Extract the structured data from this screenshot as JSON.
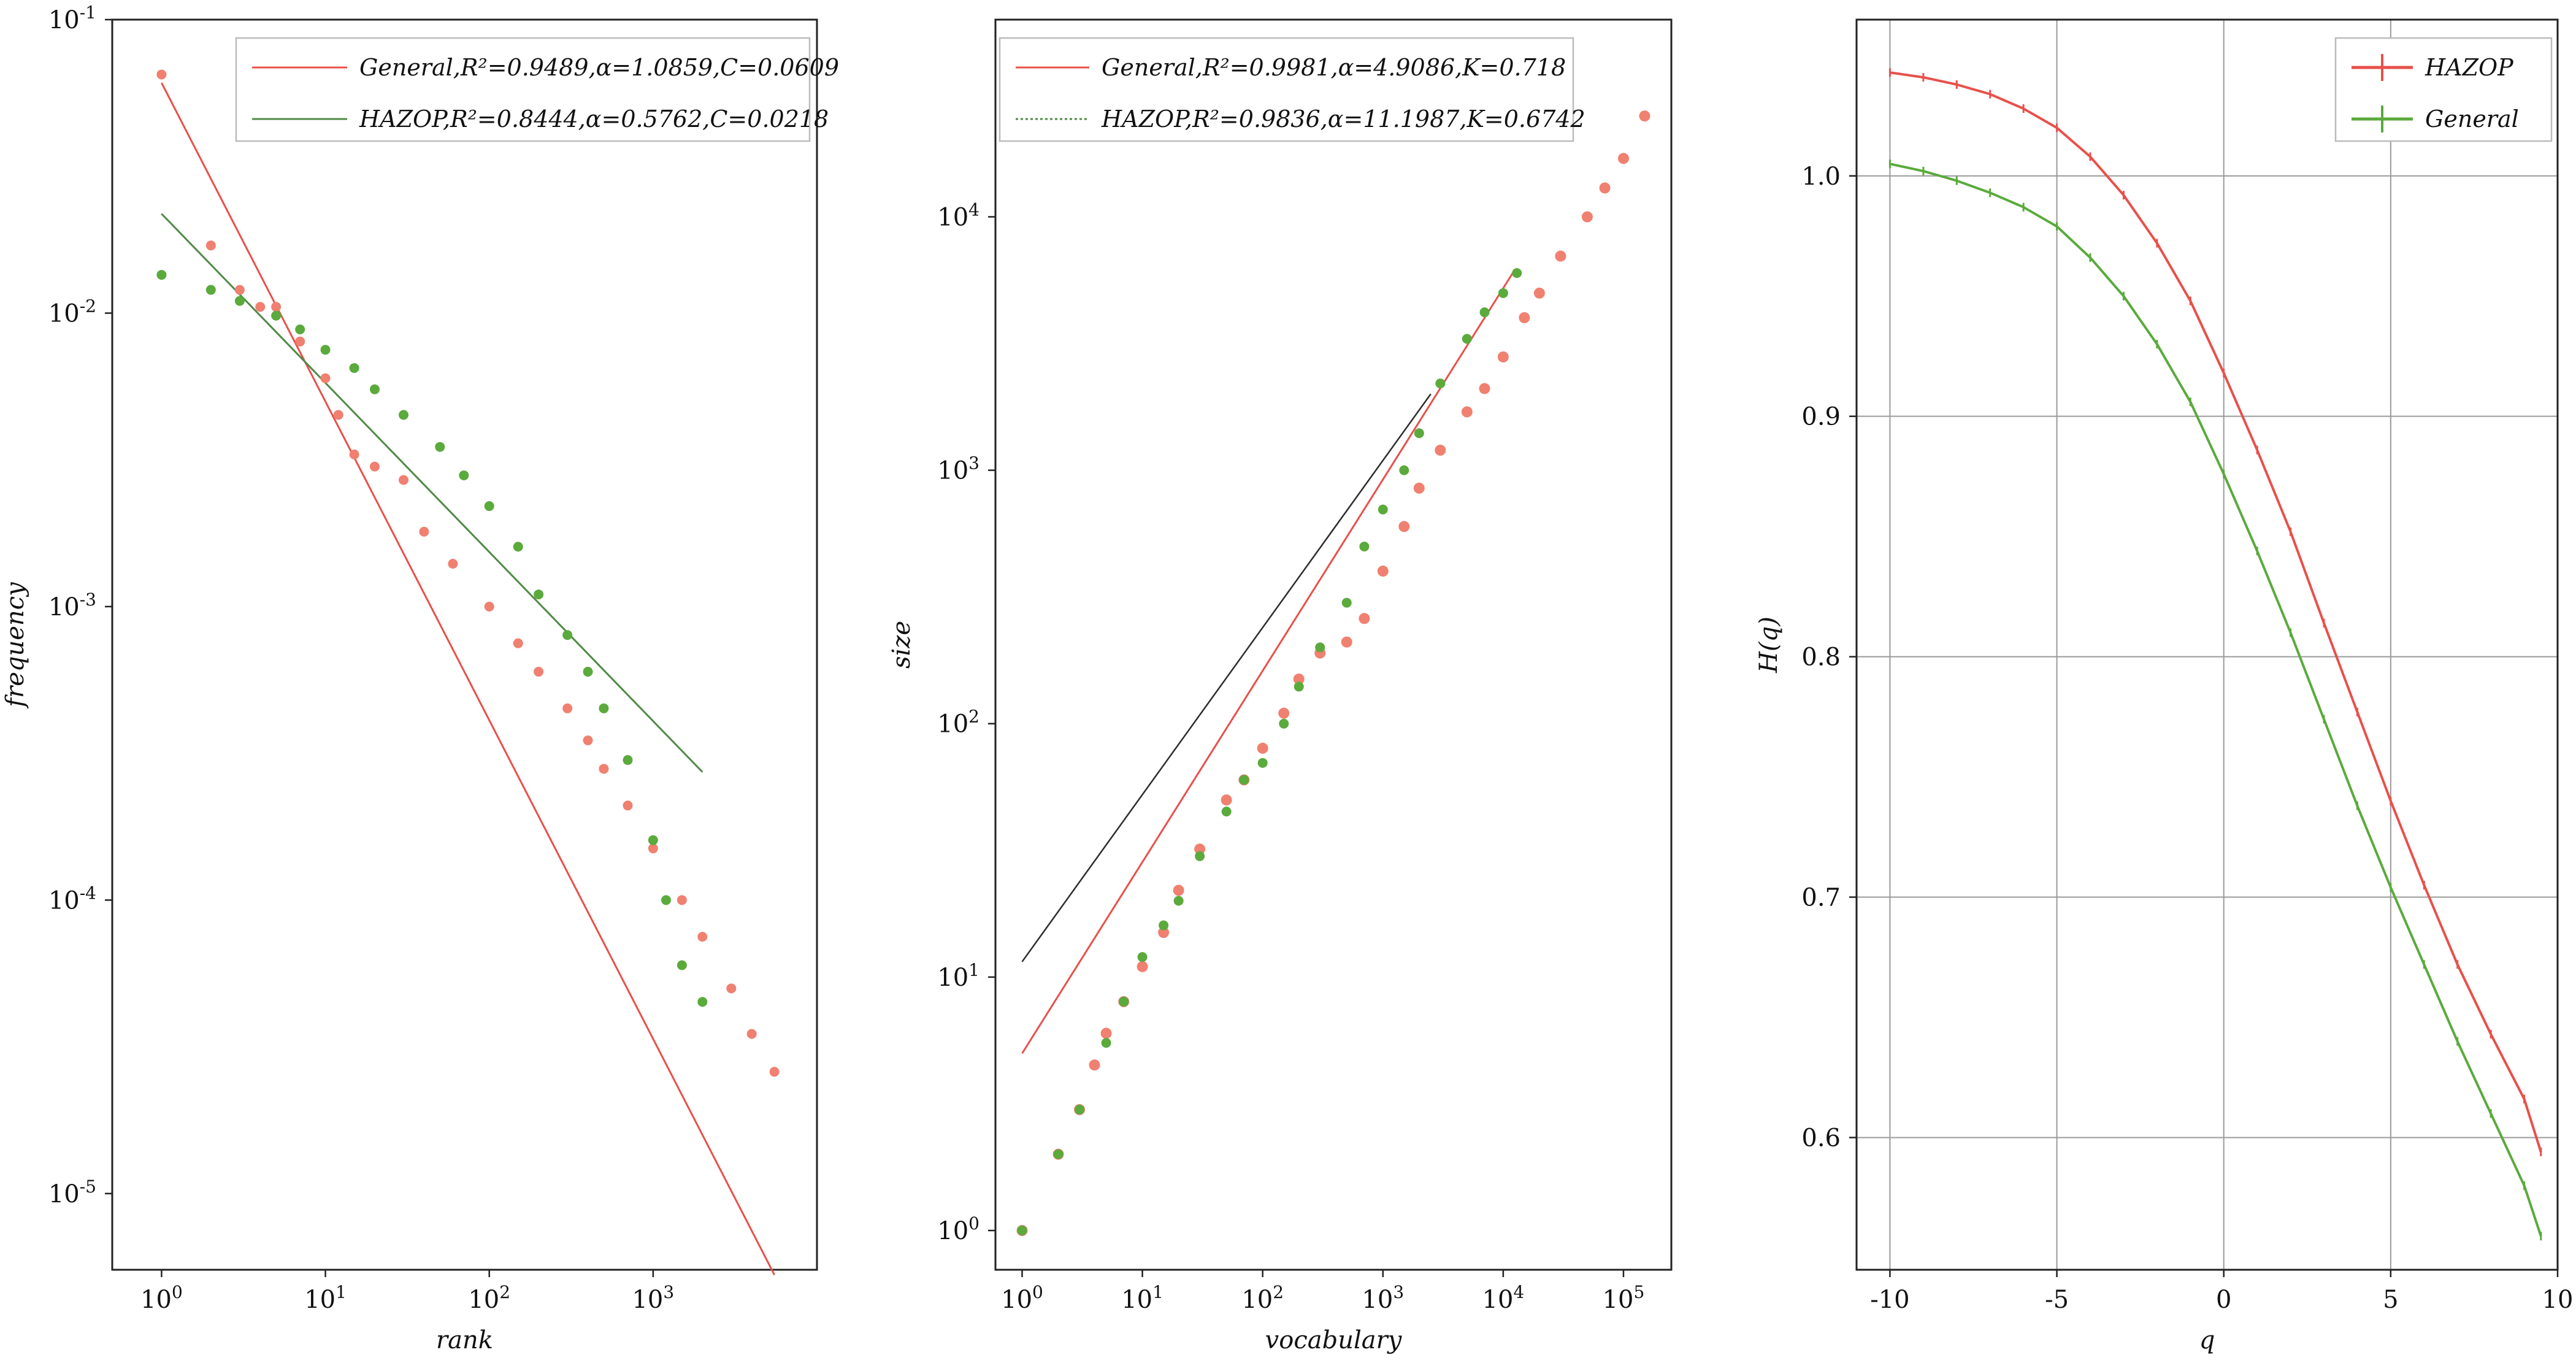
{
  "figure": {
    "panels": [
      "zipf-rank-frequency",
      "heaps-vocabulary-size",
      "renyi-entropy-hq"
    ]
  },
  "colors": {
    "general": "#e8504a",
    "general_marker": "#f08070",
    "hazop": "#5aaa3c",
    "hazop_fit": "#4f8a45",
    "hazop_fit_dark": "#2c2c2c",
    "axes": "#222222",
    "grid": "#9a9a9a"
  },
  "chart_data": [
    {
      "type": "scatter",
      "title": "",
      "xlabel": "rank",
      "ylabel": "frequency",
      "xscale": "log",
      "yscale": "log",
      "xlim": [
        0.5,
        10000
      ],
      "ylim": [
        5.5e-06,
        0.1
      ],
      "xticks": [
        {
          "v": 1,
          "label": "10",
          "exp": "0"
        },
        {
          "v": 10,
          "label": "10",
          "exp": "1"
        },
        {
          "v": 100,
          "label": "10",
          "exp": "2"
        },
        {
          "v": 1000,
          "label": "10",
          "exp": "3"
        }
      ],
      "yticks": [
        {
          "v": 1e-05,
          "label": "10",
          "exp": "-5"
        },
        {
          "v": 0.0001,
          "label": "10",
          "exp": "-4"
        },
        {
          "v": 0.001,
          "label": "10",
          "exp": "-3"
        },
        {
          "v": 0.01,
          "label": "10",
          "exp": "-2"
        },
        {
          "v": 0.1,
          "label": "10",
          "exp": "-1"
        }
      ],
      "legend_position": "top-right",
      "series": [
        {
          "name": "General",
          "legend": "General,R²=0.9489,α=1.0859,C=0.0609",
          "color": "#e8504a",
          "fit": {
            "kind": "powerlaw",
            "C": 0.0609,
            "alpha": 1.0859,
            "x_range": [
              1,
              5500
            ]
          },
          "points": [
            [
              1,
              0.065
            ],
            [
              2,
              0.017
            ],
            [
              3,
              0.012
            ],
            [
              4,
              0.0105
            ],
            [
              5,
              0.0105
            ],
            [
              7,
              0.008
            ],
            [
              10,
              0.006
            ],
            [
              12,
              0.0045
            ],
            [
              15,
              0.0033
            ],
            [
              20,
              0.003
            ],
            [
              30,
              0.0027
            ],
            [
              40,
              0.0018
            ],
            [
              60,
              0.0014
            ],
            [
              100,
              0.001
            ],
            [
              150,
              0.00075
            ],
            [
              200,
              0.0006
            ],
            [
              300,
              0.00045
            ],
            [
              400,
              0.00035
            ],
            [
              500,
              0.00028
            ],
            [
              700,
              0.00021
            ],
            [
              1000,
              0.00015
            ],
            [
              1500,
              0.0001
            ],
            [
              2000,
              7.5e-05
            ],
            [
              3000,
              5e-05
            ],
            [
              4000,
              3.5e-05
            ],
            [
              5500,
              2.6e-05
            ]
          ]
        },
        {
          "name": "HAZOP",
          "legend": "HAZOP,R²=0.8444,α=0.5762,C=0.0218",
          "color": "#5aaa3c",
          "fit": {
            "kind": "powerlaw",
            "C": 0.0218,
            "alpha": 0.5762,
            "x_range": [
              1,
              2000
            ]
          },
          "points": [
            [
              1,
              0.0135
            ],
            [
              2,
              0.012
            ],
            [
              3,
              0.011
            ],
            [
              5,
              0.0098
            ],
            [
              7,
              0.0088
            ],
            [
              10,
              0.0075
            ],
            [
              15,
              0.0065
            ],
            [
              20,
              0.0055
            ],
            [
              30,
              0.0045
            ],
            [
              50,
              0.0035
            ],
            [
              70,
              0.0028
            ],
            [
              100,
              0.0022
            ],
            [
              150,
              0.0016
            ],
            [
              200,
              0.0011
            ],
            [
              300,
              0.0008
            ],
            [
              400,
              0.0006
            ],
            [
              500,
              0.00045
            ],
            [
              700,
              0.0003
            ],
            [
              1000,
              0.00016
            ],
            [
              1200,
              0.0001
            ],
            [
              1500,
              6e-05
            ],
            [
              2000,
              4.5e-05
            ]
          ]
        }
      ]
    },
    {
      "type": "scatter",
      "title": "",
      "xlabel": "vocabulary",
      "ylabel": "size",
      "xscale": "log",
      "yscale": "log",
      "xlim": [
        0.6,
        250000
      ],
      "ylim": [
        0.7,
        60000
      ],
      "xticks": [
        {
          "v": 1,
          "label": "10",
          "exp": "0"
        },
        {
          "v": 10,
          "label": "10",
          "exp": "1"
        },
        {
          "v": 100,
          "label": "10",
          "exp": "2"
        },
        {
          "v": 1000,
          "label": "10",
          "exp": "3"
        },
        {
          "v": 10000,
          "label": "10",
          "exp": "4"
        },
        {
          "v": 100000,
          "label": "10",
          "exp": "5"
        }
      ],
      "yticks": [
        {
          "v": 1,
          "label": "10",
          "exp": "0"
        },
        {
          "v": 10,
          "label": "10",
          "exp": "1"
        },
        {
          "v": 100,
          "label": "10",
          "exp": "2"
        },
        {
          "v": 1000,
          "label": "10",
          "exp": "3"
        },
        {
          "v": 10000,
          "label": "10",
          "exp": "4"
        }
      ],
      "legend_position": "top-left",
      "series": [
        {
          "name": "General",
          "legend": "General,R²=0.9981,α=4.9086,K=0.718",
          "color": "#e8504a",
          "fit": {
            "kind": "line",
            "p1": [
              1,
              5
            ],
            "p2": [
              12000,
              6000
            ]
          },
          "points": [
            [
              1,
              1
            ],
            [
              2,
              2
            ],
            [
              3,
              3
            ],
            [
              4,
              4.5
            ],
            [
              5,
              6
            ],
            [
              7,
              8
            ],
            [
              10,
              11
            ],
            [
              15,
              15
            ],
            [
              20,
              22
            ],
            [
              30,
              32
            ],
            [
              50,
              50
            ],
            [
              70,
              60
            ],
            [
              100,
              80
            ],
            [
              150,
              110
            ],
            [
              200,
              150
            ],
            [
              300,
              190
            ],
            [
              500,
              210
            ],
            [
              700,
              260
            ],
            [
              1000,
              400
            ],
            [
              1500,
              600
            ],
            [
              2000,
              850
            ],
            [
              3000,
              1200
            ],
            [
              5000,
              1700
            ],
            [
              7000,
              2100
            ],
            [
              10000,
              2800
            ],
            [
              15000,
              4000
            ],
            [
              20000,
              5000
            ],
            [
              30000,
              7000
            ],
            [
              50000,
              10000
            ],
            [
              70000,
              13000
            ],
            [
              100000,
              17000
            ],
            [
              150000,
              25000
            ]
          ]
        },
        {
          "name": "HAZOP",
          "legend": "HAZOP,R²=0.9836,α=11.1987,K=0.6742",
          "color": "#5aaa3c",
          "fit": {
            "kind": "line",
            "p1": [
              1,
              11.5
            ],
            "p2": [
              2500,
              2000
            ]
          },
          "points": [
            [
              1,
              1
            ],
            [
              2,
              2
            ],
            [
              3,
              3
            ],
            [
              5,
              5.5
            ],
            [
              7,
              8
            ],
            [
              10,
              12
            ],
            [
              15,
              16
            ],
            [
              20,
              20
            ],
            [
              30,
              30
            ],
            [
              50,
              45
            ],
            [
              70,
              60
            ],
            [
              100,
              70
            ],
            [
              150,
              100
            ],
            [
              200,
              140
            ],
            [
              300,
              200
            ],
            [
              500,
              300
            ],
            [
              700,
              500
            ],
            [
              1000,
              700
            ],
            [
              1500,
              1000
            ],
            [
              2000,
              1400
            ],
            [
              3000,
              2200
            ],
            [
              5000,
              3300
            ],
            [
              7000,
              4200
            ],
            [
              10000,
              5000
            ],
            [
              13000,
              6000
            ]
          ]
        }
      ]
    },
    {
      "type": "line",
      "title": "",
      "xlabel": "q",
      "ylabel": "H(q)",
      "xlim": [
        -11,
        10
      ],
      "ylim": [
        0.545,
        1.065
      ],
      "grid": true,
      "xticks": [
        {
          "v": -10,
          "label": "-10"
        },
        {
          "v": -5,
          "label": "-5"
        },
        {
          "v": 0,
          "label": "0"
        },
        {
          "v": 5,
          "label": "5"
        },
        {
          "v": 10,
          "label": "10"
        }
      ],
      "yticks": [
        {
          "v": 0.6,
          "label": "0.6"
        },
        {
          "v": 0.7,
          "label": "0.7"
        },
        {
          "v": 0.8,
          "label": "0.8"
        },
        {
          "v": 0.9,
          "label": "0.9"
        },
        {
          "v": 1.0,
          "label": "1.0"
        }
      ],
      "legend_position": "top-right",
      "series": [
        {
          "name": "HAZOP",
          "legend": "HAZOP",
          "color": "#e8504a",
          "x": [
            -10,
            -9,
            -8,
            -7,
            -6,
            -5,
            -4,
            -3,
            -2,
            -1,
            0,
            1,
            2,
            3,
            4,
            5,
            6,
            7,
            8,
            9,
            9.5
          ],
          "values": [
            1.043,
            1.041,
            1.038,
            1.034,
            1.028,
            1.02,
            1.008,
            0.992,
            0.972,
            0.948,
            0.918,
            0.886,
            0.852,
            0.814,
            0.777,
            0.74,
            0.705,
            0.672,
            0.643,
            0.616,
            0.594
          ]
        },
        {
          "name": "General",
          "legend": "General",
          "color": "#5aaa3c",
          "x": [
            -10,
            -9,
            -8,
            -7,
            -6,
            -5,
            -4,
            -3,
            -2,
            -1,
            0,
            1,
            2,
            3,
            4,
            5,
            6,
            7,
            8,
            9,
            9.5
          ],
          "values": [
            1.005,
            1.002,
            0.998,
            0.993,
            0.987,
            0.979,
            0.966,
            0.95,
            0.93,
            0.906,
            0.876,
            0.844,
            0.81,
            0.774,
            0.738,
            0.704,
            0.672,
            0.64,
            0.61,
            0.58,
            0.559
          ]
        }
      ]
    }
  ]
}
